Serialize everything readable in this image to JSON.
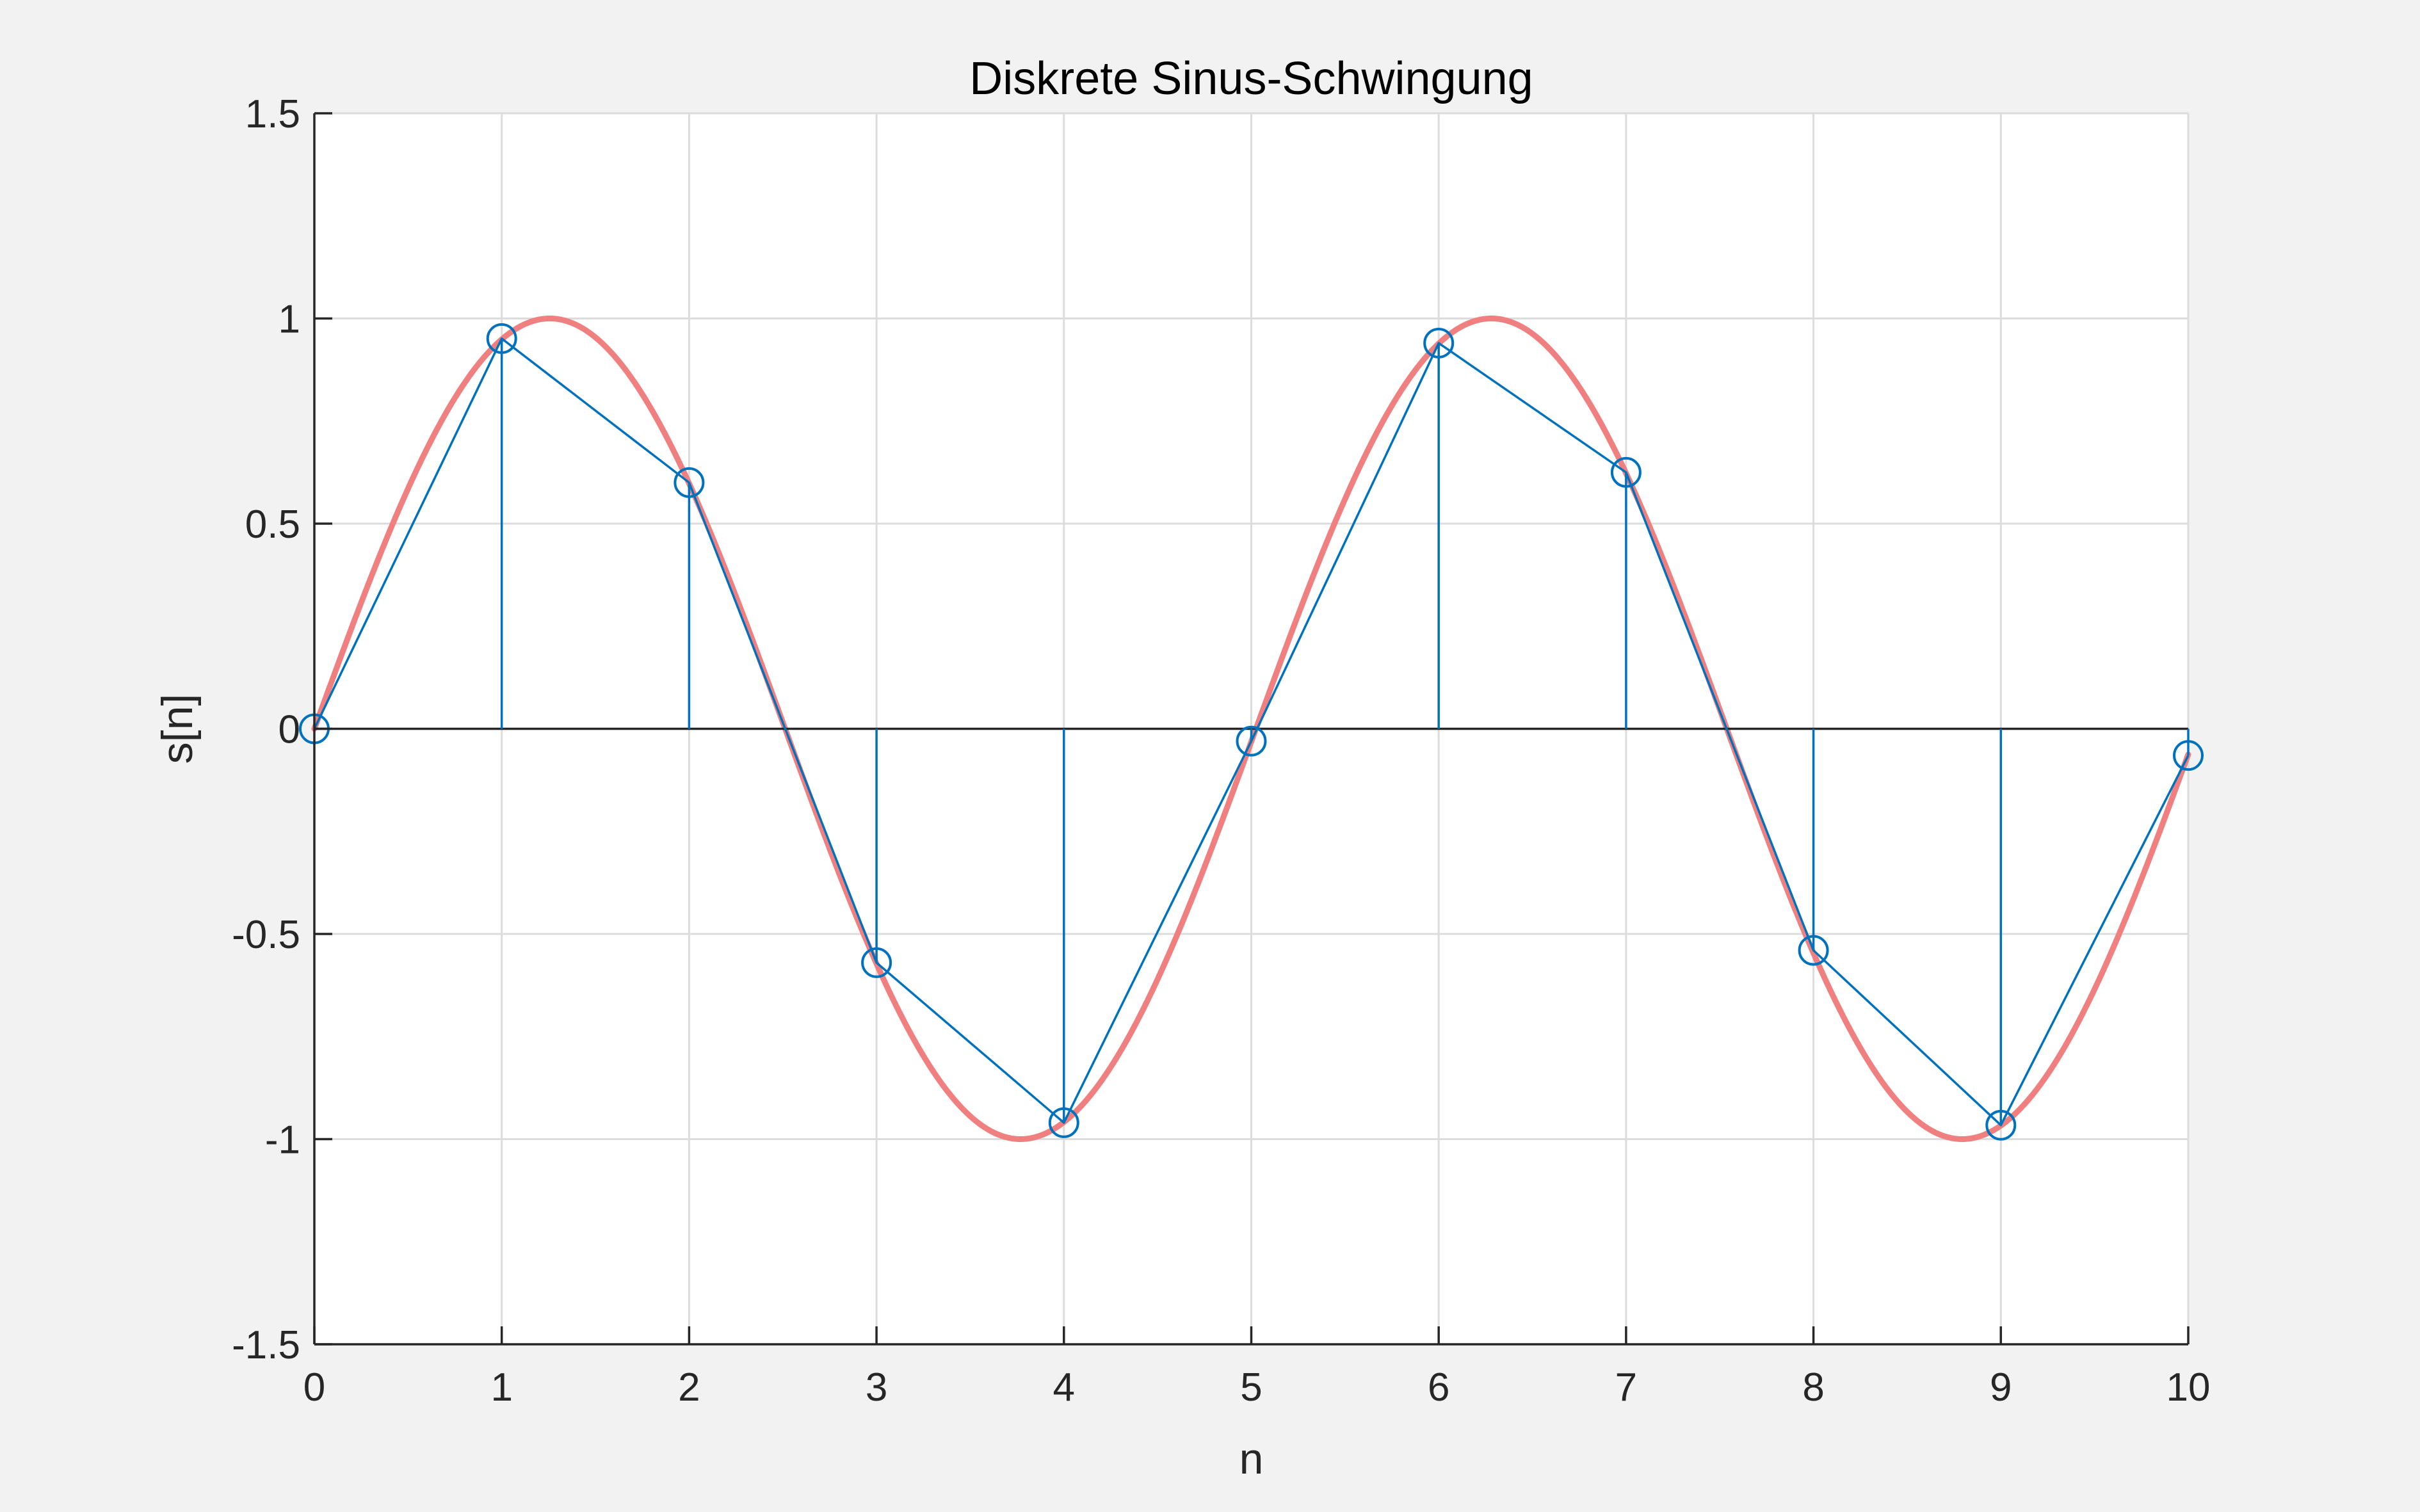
{
  "chart_data": {
    "type": "line",
    "title": "Diskrete Sinus-Schwingung",
    "xlabel": "n",
    "ylabel": "s[n]",
    "xlim": [
      0,
      10
    ],
    "ylim": [
      -1.5,
      1.5
    ],
    "xticks": [
      "0",
      "1",
      "2",
      "3",
      "4",
      "5",
      "6",
      "7",
      "8",
      "9",
      "10"
    ],
    "yticks": [
      "1.5",
      "1",
      "0.5",
      "0",
      "-0.5",
      "-1",
      "-1.5"
    ],
    "grid": true,
    "legend": "none",
    "colors": {
      "stem": "#0072BD",
      "continuous": "#F08080",
      "axes": "#262626",
      "grid": "#dcdcdc",
      "plot_bg": "#ffffff",
      "figure_bg": "#f2f2f2"
    },
    "series": [
      {
        "kind": "stem",
        "x": [
          0,
          1,
          2,
          3,
          4,
          5,
          6,
          7,
          8,
          9,
          10
        ],
        "y": [
          0,
          0.951,
          0.6,
          -0.57,
          -0.96,
          -0.03,
          0.94,
          0.625,
          -0.54,
          -0.966,
          -0.065
        ]
      },
      {
        "kind": "continuous-sine",
        "amplitude": 1,
        "period": 5.025,
        "x_range": [
          0,
          10
        ]
      }
    ]
  }
}
